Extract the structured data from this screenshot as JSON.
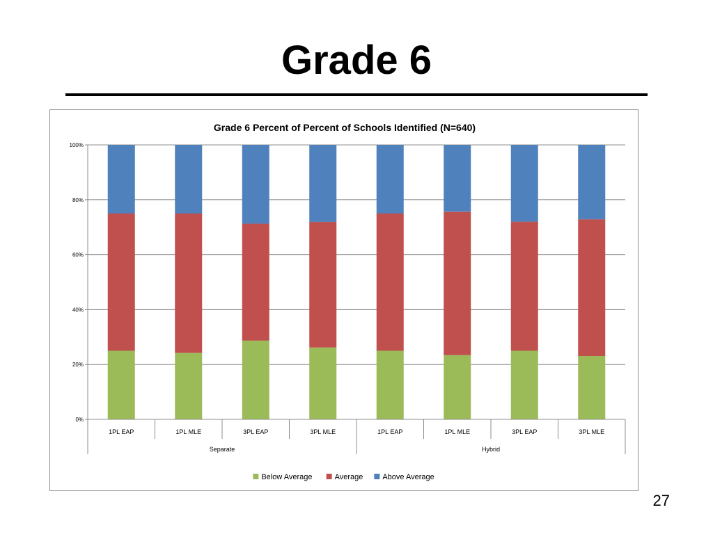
{
  "slide": {
    "title": "Grade 6",
    "page_number": "27"
  },
  "chart_data": {
    "type": "bar",
    "stacked": true,
    "percent": true,
    "title": "Grade 6 Percent of Percent of Schools Identified (N=640)",
    "xlabel": "",
    "ylabel": "",
    "ylim": [
      0,
      100
    ],
    "yticks": [
      "0%",
      "20%",
      "40%",
      "60%",
      "80%",
      "100%"
    ],
    "categories": [
      "1PL EAP",
      "1PL MLE",
      "3PL EAP",
      "3PL MLE",
      "1PL EAP",
      "1PL MLE",
      "3PL EAP",
      "3PL MLE"
    ],
    "groups": [
      {
        "label": "Separate",
        "count": 4
      },
      {
        "label": "Hybrid",
        "count": 4
      }
    ],
    "series": [
      {
        "name": "Below Average",
        "color": "#9BBB59",
        "values": [
          25,
          24.2,
          28.7,
          26.2,
          25,
          23.4,
          25,
          23.1
        ]
      },
      {
        "name": "Average",
        "color": "#C0504D",
        "values": [
          50,
          50.8,
          42.6,
          45.7,
          50,
          52.3,
          47,
          49.8
        ]
      },
      {
        "name": "Above Average",
        "color": "#4F81BD",
        "values": [
          25,
          25,
          28.7,
          28.1,
          25,
          24.3,
          28,
          27.1
        ]
      }
    ],
    "legend": "bottom",
    "grid": true
  }
}
